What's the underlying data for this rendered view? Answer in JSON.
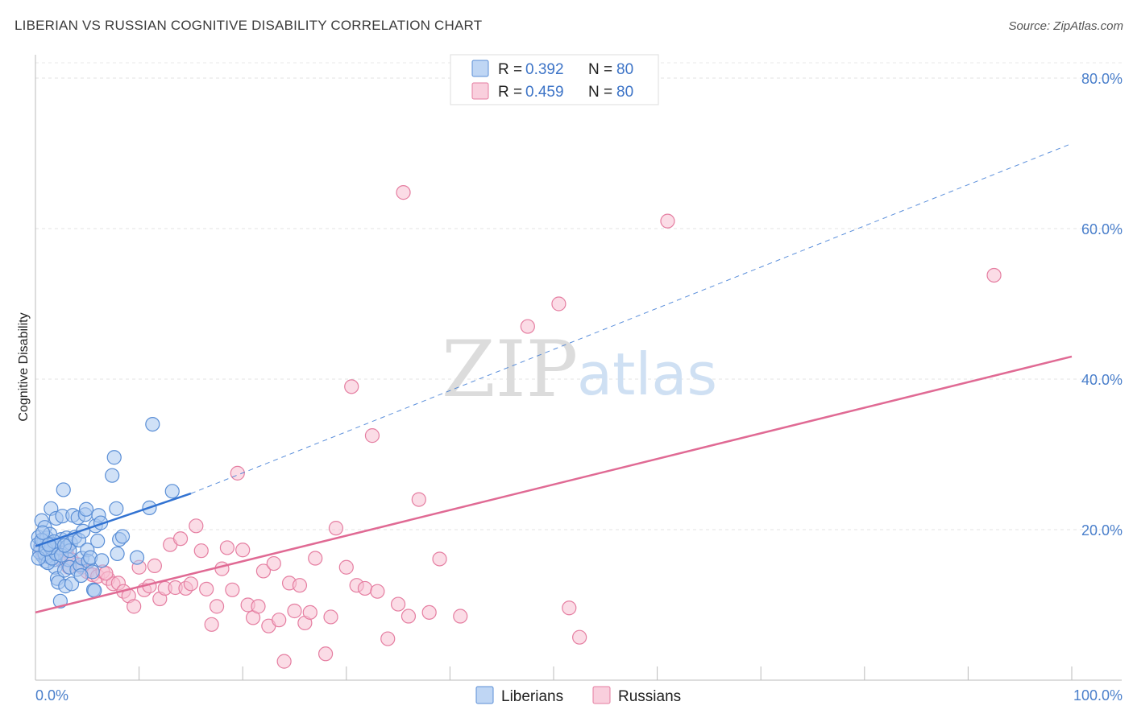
{
  "title": "LIBERIAN VS RUSSIAN COGNITIVE DISABILITY CORRELATION CHART",
  "source": "Source: ZipAtlas.com",
  "watermark": {
    "zip": "ZIP",
    "atlas": "atlas"
  },
  "legend": {
    "r_label": "R = ",
    "n_label": "N = ",
    "rows": [
      {
        "r": "0.392",
        "n": "80"
      },
      {
        "r": "0.459",
        "n": "80"
      }
    ]
  },
  "colors": {
    "liberians_fill": "#a9c8f0",
    "liberians_stroke": "#5b8fd6",
    "liberians_line": "#3273d2",
    "russians_fill": "#f7bfd1",
    "russians_stroke": "#e57ea1",
    "russians_line": "#e06a94"
  },
  "chart_data": {
    "type": "scatter",
    "xlabel": "",
    "ylabel": "Cognitive Disability",
    "xlim": [
      0,
      100
    ],
    "ylim": [
      0,
      80
    ],
    "x_tick_labels": [
      {
        "value": 0,
        "label": "0.0%"
      },
      {
        "value": 100,
        "label": "100.0%"
      }
    ],
    "y_tick_labels": [
      {
        "value": 20,
        "label": "20.0%"
      },
      {
        "value": 40,
        "label": "40.0%"
      },
      {
        "value": 60,
        "label": "60.0%"
      },
      {
        "value": 80,
        "label": "80.0%"
      }
    ],
    "grid": "horizontal dashed",
    "legend_position": "top-center",
    "series": [
      {
        "name": "Liberians",
        "r": 0.392,
        "n": 80,
        "trend": {
          "x0": 0,
          "y0": 17.8,
          "x1": 15,
          "y1": 24.8,
          "dashed_to_x": 100,
          "dashed_to_y": 71.3
        },
        "points": [
          [
            0.3,
            19.0
          ],
          [
            0.5,
            17.8
          ],
          [
            0.6,
            21.2
          ],
          [
            0.7,
            16.5
          ],
          [
            0.8,
            18.5
          ],
          [
            0.9,
            20.3
          ],
          [
            1.0,
            15.8
          ],
          [
            1.1,
            18.9
          ],
          [
            1.2,
            17.1
          ],
          [
            1.3,
            16.4
          ],
          [
            1.4,
            19.4
          ],
          [
            1.5,
            22.8
          ],
          [
            1.6,
            18.1
          ],
          [
            1.7,
            17.3
          ],
          [
            1.8,
            16.0
          ],
          [
            1.9,
            15.0
          ],
          [
            2.0,
            21.5
          ],
          [
            2.1,
            13.5
          ],
          [
            2.2,
            13.0
          ],
          [
            2.3,
            17.6
          ],
          [
            2.4,
            10.5
          ],
          [
            2.5,
            18.7
          ],
          [
            2.6,
            21.8
          ],
          [
            2.7,
            25.3
          ],
          [
            2.8,
            14.6
          ],
          [
            2.9,
            12.5
          ],
          [
            3.0,
            18.9
          ],
          [
            3.1,
            17.8
          ],
          [
            3.2,
            16.0
          ],
          [
            3.3,
            15.0
          ],
          [
            3.4,
            18.2
          ],
          [
            3.5,
            12.8
          ],
          [
            3.6,
            21.9
          ],
          [
            3.8,
            19.0
          ],
          [
            4.0,
            14.7
          ],
          [
            4.1,
            21.6
          ],
          [
            4.2,
            18.6
          ],
          [
            4.3,
            15.3
          ],
          [
            4.5,
            16.2
          ],
          [
            4.6,
            19.8
          ],
          [
            4.8,
            22.0
          ],
          [
            4.9,
            22.7
          ],
          [
            5.0,
            17.3
          ],
          [
            5.1,
            15.8
          ],
          [
            5.3,
            16.3
          ],
          [
            5.5,
            14.4
          ],
          [
            5.6,
            12.0
          ],
          [
            5.7,
            11.9
          ],
          [
            5.8,
            20.5
          ],
          [
            6.0,
            18.5
          ],
          [
            6.1,
            21.9
          ],
          [
            6.3,
            20.9
          ],
          [
            6.4,
            15.9
          ],
          [
            7.4,
            27.2
          ],
          [
            7.6,
            29.6
          ],
          [
            7.8,
            22.8
          ],
          [
            7.9,
            16.8
          ],
          [
            8.1,
            18.7
          ],
          [
            8.4,
            19.1
          ],
          [
            9.8,
            16.3
          ],
          [
            11.0,
            22.9
          ],
          [
            11.3,
            34.0
          ],
          [
            13.2,
            25.1
          ],
          [
            0.4,
            17.0
          ],
          [
            0.9,
            16.8
          ],
          [
            1.2,
            15.6
          ],
          [
            1.6,
            16.2
          ],
          [
            2.0,
            16.8
          ],
          [
            0.2,
            18.0
          ],
          [
            0.6,
            18.6
          ],
          [
            1.5,
            17.6
          ],
          [
            2.5,
            16.6
          ],
          [
            3.3,
            17.2
          ],
          [
            0.3,
            16.2
          ],
          [
            1.0,
            17.4
          ],
          [
            1.8,
            18.4
          ],
          [
            4.4,
            13.9
          ],
          [
            0.7,
            19.6
          ],
          [
            1.3,
            18.0
          ],
          [
            2.8,
            17.9
          ]
        ]
      },
      {
        "name": "Russians",
        "r": 0.459,
        "n": 80,
        "trend": {
          "x0": 0,
          "y0": 9.0,
          "x1": 100,
          "y1": 43.0
        },
        "points": [
          [
            0.5,
            17.5
          ],
          [
            0.8,
            16.8
          ],
          [
            1.2,
            18.0
          ],
          [
            1.5,
            17.0
          ],
          [
            2.0,
            16.3
          ],
          [
            2.5,
            15.9
          ],
          [
            3.0,
            17.2
          ],
          [
            3.5,
            16.0
          ],
          [
            4.0,
            15.4
          ],
          [
            4.5,
            15.0
          ],
          [
            5.0,
            14.4
          ],
          [
            5.5,
            14.0
          ],
          [
            6.0,
            13.8
          ],
          [
            6.5,
            14.4
          ],
          [
            7.0,
            13.5
          ],
          [
            7.5,
            12.8
          ],
          [
            8.0,
            12.9
          ],
          [
            8.5,
            11.8
          ],
          [
            9.0,
            11.2
          ],
          [
            9.5,
            9.8
          ],
          [
            10.0,
            15.0
          ],
          [
            10.5,
            12.0
          ],
          [
            11.0,
            12.5
          ],
          [
            11.5,
            15.2
          ],
          [
            12.0,
            10.8
          ],
          [
            12.5,
            12.2
          ],
          [
            13.0,
            18.0
          ],
          [
            13.5,
            12.3
          ],
          [
            14.0,
            18.8
          ],
          [
            14.5,
            12.2
          ],
          [
            15.0,
            12.8
          ],
          [
            15.5,
            20.5
          ],
          [
            16.0,
            17.2
          ],
          [
            16.5,
            12.1
          ],
          [
            17.0,
            7.4
          ],
          [
            17.5,
            9.8
          ],
          [
            18.0,
            14.8
          ],
          [
            18.5,
            17.6
          ],
          [
            19.0,
            12.0
          ],
          [
            19.5,
            27.5
          ],
          [
            20.0,
            17.3
          ],
          [
            20.5,
            10.0
          ],
          [
            21.0,
            8.3
          ],
          [
            21.5,
            9.8
          ],
          [
            22.0,
            14.5
          ],
          [
            22.5,
            7.2
          ],
          [
            23.0,
            15.5
          ],
          [
            23.5,
            8.0
          ],
          [
            24.0,
            2.5
          ],
          [
            24.5,
            12.9
          ],
          [
            25.0,
            9.2
          ],
          [
            25.5,
            12.6
          ],
          [
            26.0,
            7.6
          ],
          [
            26.5,
            9.0
          ],
          [
            27.0,
            16.2
          ],
          [
            28.0,
            3.5
          ],
          [
            28.5,
            8.4
          ],
          [
            29.0,
            20.2
          ],
          [
            30.0,
            15.0
          ],
          [
            30.5,
            39.0
          ],
          [
            31.0,
            12.6
          ],
          [
            31.8,
            12.2
          ],
          [
            32.5,
            32.5
          ],
          [
            33.0,
            11.8
          ],
          [
            34.0,
            5.5
          ],
          [
            35.0,
            10.1
          ],
          [
            35.5,
            64.8
          ],
          [
            36.0,
            8.5
          ],
          [
            37.0,
            24.0
          ],
          [
            38.0,
            9.0
          ],
          [
            39.0,
            16.1
          ],
          [
            41.0,
            8.5
          ],
          [
            47.5,
            47.0
          ],
          [
            50.5,
            50.0
          ],
          [
            51.5,
            9.6
          ],
          [
            52.5,
            5.7
          ],
          [
            61.0,
            61.0
          ],
          [
            92.5,
            53.8
          ],
          [
            3.2,
            15.0
          ],
          [
            6.8,
            14.2
          ]
        ]
      }
    ]
  }
}
